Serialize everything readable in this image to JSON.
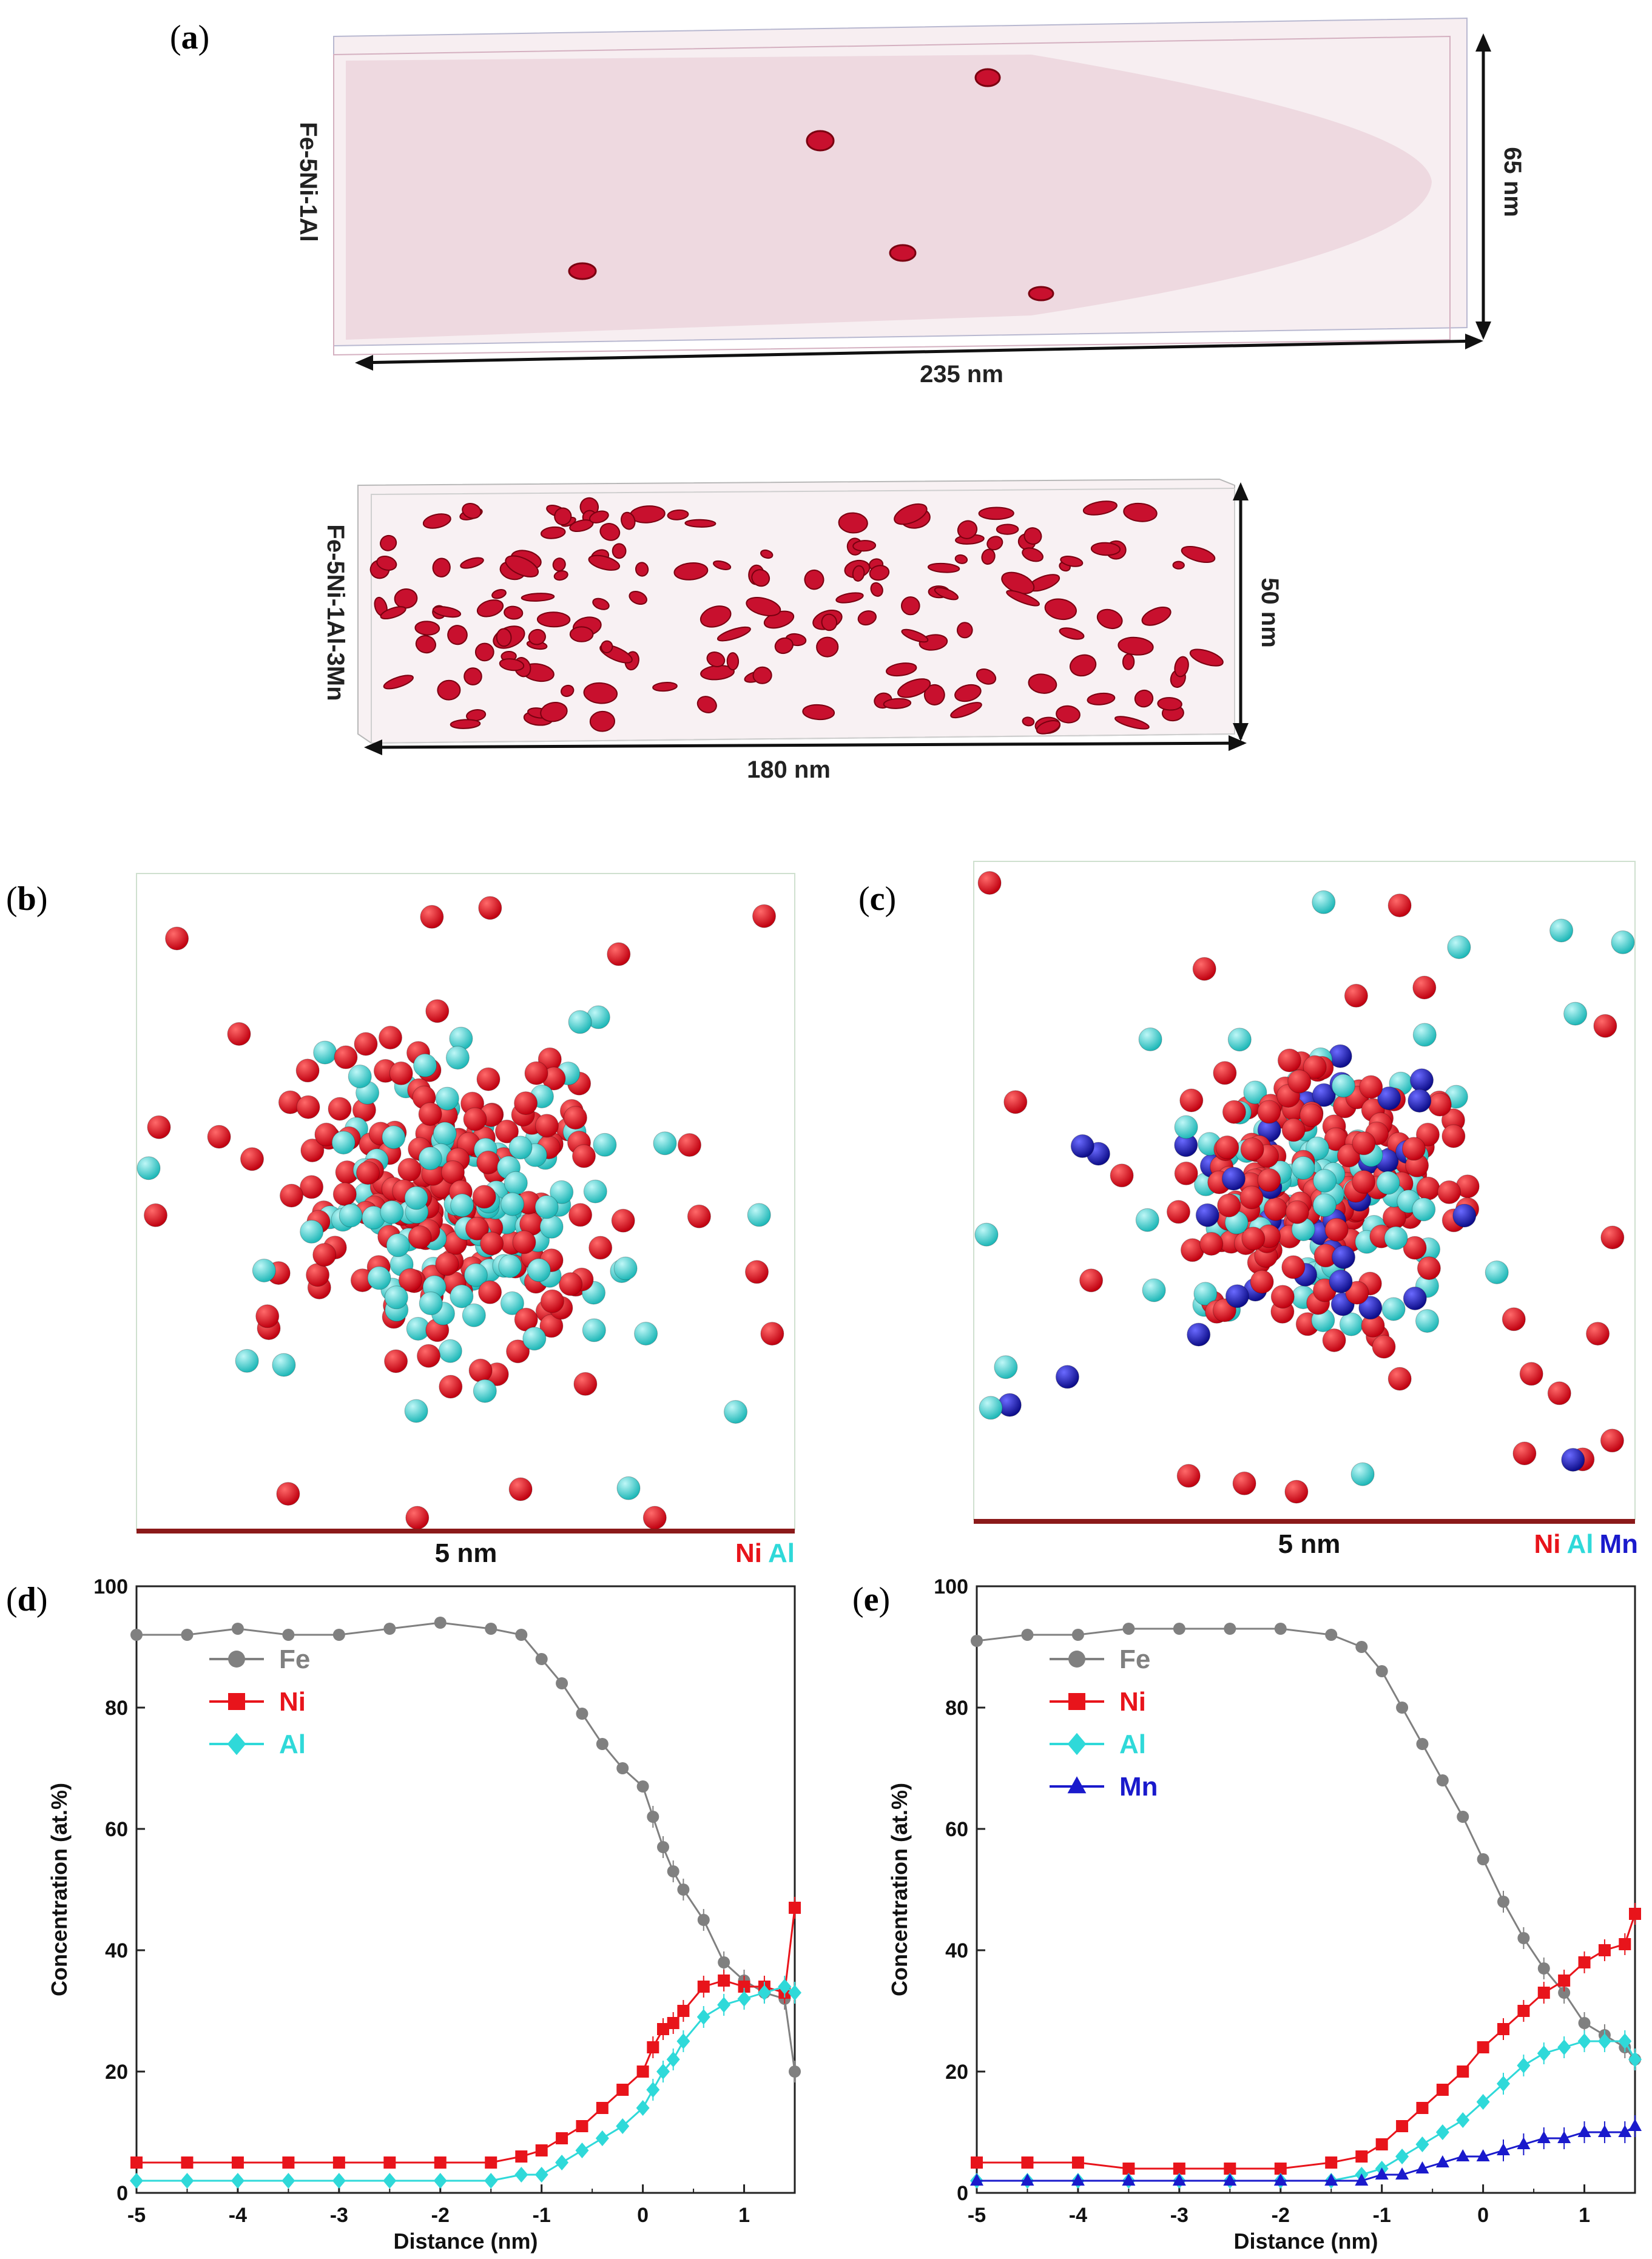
{
  "panel_a": {
    "label_open": "(",
    "label_letter": "a",
    "label_close": ")",
    "sample1": {
      "name": "Fe-5Ni-1Al",
      "width_label": "235 nm",
      "height_label": "65 nm"
    },
    "sample2": {
      "name": "Fe-5Ni-1Al-3Mn",
      "width_label": "180 nm",
      "height_label": "50 nm"
    }
  },
  "panel_b": {
    "label": "b",
    "scale": "5 nm",
    "elements": [
      "Ni",
      "Al"
    ]
  },
  "panel_c": {
    "label": "c",
    "scale": "5 nm",
    "elements": [
      "Ni",
      "Al",
      "Mn"
    ]
  },
  "colors": {
    "Fe": "#808080",
    "Ni": "#e8141b",
    "Al": "#2fd9d9",
    "Mn": "#1a1acc",
    "precip": "#c8102e"
  },
  "chart_data": [
    {
      "panel": "d",
      "type": "line",
      "title": "",
      "xlabel": "Distance (nm)",
      "ylabel": "Concentration (at.%)",
      "xlim": [
        -5,
        1.5
      ],
      "ylim": [
        0,
        100
      ],
      "xticks": [
        "-5",
        "-4",
        "-3",
        "-2",
        "-1",
        "0",
        "1"
      ],
      "yticks": [
        "0",
        "20",
        "40",
        "60",
        "80",
        "100"
      ],
      "legend": "upper-left",
      "series": [
        {
          "name": "Fe",
          "marker": "circle",
          "x": [
            -5,
            -4.5,
            -4,
            -3.5,
            -3,
            -2.5,
            -2,
            -1.5,
            -1.2,
            -1,
            -0.8,
            -0.6,
            -0.4,
            -0.2,
            0,
            0.1,
            0.2,
            0.3,
            0.4,
            0.6,
            0.8,
            1,
            1.2,
            1.4,
            1.5
          ],
          "y": [
            92,
            92,
            93,
            92,
            92,
            93,
            94,
            93,
            92,
            88,
            84,
            79,
            74,
            70,
            67,
            62,
            57,
            53,
            50,
            45,
            38,
            35,
            33,
            32,
            20
          ]
        },
        {
          "name": "Ni",
          "marker": "square",
          "x": [
            -5,
            -4.5,
            -4,
            -3.5,
            -3,
            -2.5,
            -2,
            -1.5,
            -1.2,
            -1,
            -0.8,
            -0.6,
            -0.4,
            -0.2,
            0,
            0.1,
            0.2,
            0.3,
            0.4,
            0.6,
            0.8,
            1,
            1.2,
            1.4,
            1.5
          ],
          "y": [
            5,
            5,
            5,
            5,
            5,
            5,
            5,
            5,
            6,
            7,
            9,
            11,
            14,
            17,
            20,
            24,
            27,
            28,
            30,
            34,
            35,
            34,
            34,
            33,
            47
          ]
        },
        {
          "name": "Al",
          "marker": "diamond",
          "x": [
            -5,
            -4.5,
            -4,
            -3.5,
            -3,
            -2.5,
            -2,
            -1.5,
            -1.2,
            -1,
            -0.8,
            -0.6,
            -0.4,
            -0.2,
            0,
            0.1,
            0.2,
            0.3,
            0.4,
            0.6,
            0.8,
            1,
            1.2,
            1.4,
            1.5
          ],
          "y": [
            2,
            2,
            2,
            2,
            2,
            2,
            2,
            2,
            3,
            3,
            5,
            7,
            9,
            11,
            14,
            17,
            20,
            22,
            25,
            29,
            31,
            32,
            33,
            34,
            33
          ]
        }
      ]
    },
    {
      "panel": "e",
      "type": "line",
      "title": "",
      "xlabel": "Distance (nm)",
      "ylabel": "Concentration (at.%)",
      "xlim": [
        -5,
        1.5
      ],
      "ylim": [
        0,
        100
      ],
      "xticks": [
        "-5",
        "-4",
        "-3",
        "-2",
        "-1",
        "0",
        "1"
      ],
      "yticks": [
        "0",
        "20",
        "40",
        "60",
        "80",
        "100"
      ],
      "legend": "upper-left",
      "series": [
        {
          "name": "Fe",
          "marker": "circle",
          "x": [
            -5,
            -4.5,
            -4,
            -3.5,
            -3,
            -2.5,
            -2,
            -1.5,
            -1.2,
            -1,
            -0.8,
            -0.6,
            -0.4,
            -0.2,
            0,
            0.2,
            0.4,
            0.6,
            0.8,
            1,
            1.2,
            1.4,
            1.5
          ],
          "y": [
            91,
            92,
            92,
            93,
            93,
            93,
            93,
            92,
            90,
            86,
            80,
            74,
            68,
            62,
            55,
            48,
            42,
            37,
            33,
            28,
            26,
            24,
            22
          ]
        },
        {
          "name": "Ni",
          "marker": "square",
          "x": [
            -5,
            -4.5,
            -4,
            -3.5,
            -3,
            -2.5,
            -2,
            -1.5,
            -1.2,
            -1,
            -0.8,
            -0.6,
            -0.4,
            -0.2,
            0,
            0.2,
            0.4,
            0.6,
            0.8,
            1,
            1.2,
            1.4,
            1.5
          ],
          "y": [
            5,
            5,
            5,
            4,
            4,
            4,
            4,
            5,
            6,
            8,
            11,
            14,
            17,
            20,
            24,
            27,
            30,
            33,
            35,
            38,
            40,
            41,
            46
          ]
        },
        {
          "name": "Al",
          "marker": "diamond",
          "x": [
            -5,
            -4.5,
            -4,
            -3.5,
            -3,
            -2.5,
            -2,
            -1.5,
            -1.2,
            -1,
            -0.8,
            -0.6,
            -0.4,
            -0.2,
            0,
            0.2,
            0.4,
            0.6,
            0.8,
            1,
            1.2,
            1.4,
            1.5
          ],
          "y": [
            2,
            2,
            2,
            2,
            2,
            2,
            2,
            2,
            3,
            4,
            6,
            8,
            10,
            12,
            15,
            18,
            21,
            23,
            24,
            25,
            25,
            25,
            22
          ]
        },
        {
          "name": "Mn",
          "marker": "triangle",
          "x": [
            -5,
            -4.5,
            -4,
            -3.5,
            -3,
            -2.5,
            -2,
            -1.5,
            -1.2,
            -1,
            -0.8,
            -0.6,
            -0.4,
            -0.2,
            0,
            0.2,
            0.4,
            0.6,
            0.8,
            1,
            1.2,
            1.4,
            1.5
          ],
          "y": [
            2,
            2,
            2,
            2,
            2,
            2,
            2,
            2,
            2,
            3,
            3,
            4,
            5,
            6,
            6,
            7,
            8,
            9,
            9,
            10,
            10,
            10,
            11
          ]
        }
      ]
    }
  ]
}
